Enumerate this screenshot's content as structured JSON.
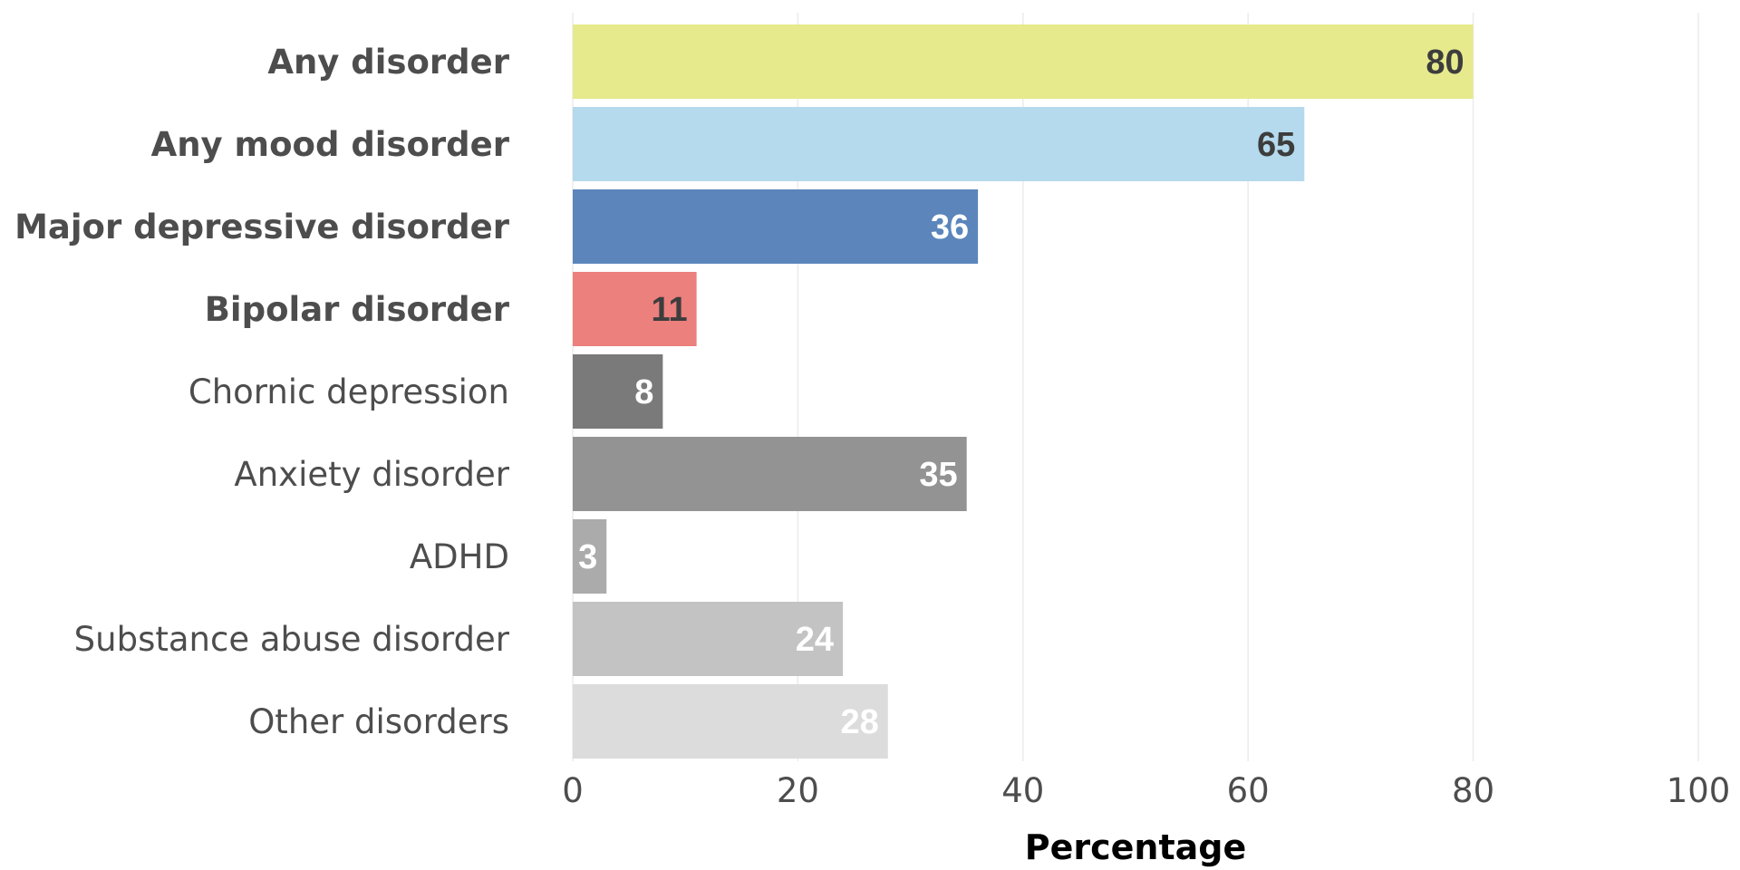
{
  "chart_data": {
    "type": "bar",
    "orientation": "horizontal",
    "categories": [
      "Any disorder",
      "Any mood disorder",
      "Major depressive disorder",
      "Bipolar disorder",
      "Chornic depression",
      "Anxiety disorder",
      "ADHD",
      "Substance abuse disorder",
      "Other disorders"
    ],
    "values": [
      80,
      65,
      36,
      11,
      8,
      35,
      3,
      24,
      28
    ],
    "value_labels": [
      "80",
      "65",
      "36",
      "11",
      "8",
      "35",
      "3",
      "24",
      "28"
    ],
    "bold_categories": [
      true,
      true,
      true,
      true,
      false,
      false,
      false,
      false,
      false
    ],
    "bar_colors": [
      "#e6ea8c",
      "#b5d9ed",
      "#5b85bb",
      "#ec807d",
      "#7a7a7a",
      "#939393",
      "#ababab",
      "#c3c3c3",
      "#dcdcdc"
    ],
    "value_label_colors": [
      "#3d3d3d",
      "#3d3d3d",
      "#ffffff",
      "#3d3d3d",
      "#ffffff",
      "#ffffff",
      "#ffffff",
      "#ffffff",
      "#ffffff"
    ],
    "xlabel": "Percentage",
    "ylabel": "",
    "xlim": [
      0,
      100
    ],
    "xticks": [
      0,
      20,
      40,
      60,
      80,
      100
    ],
    "xtick_labels": [
      "0",
      "20",
      "40",
      "60",
      "80",
      "100"
    ],
    "grid": "vertical",
    "legend": "none"
  }
}
